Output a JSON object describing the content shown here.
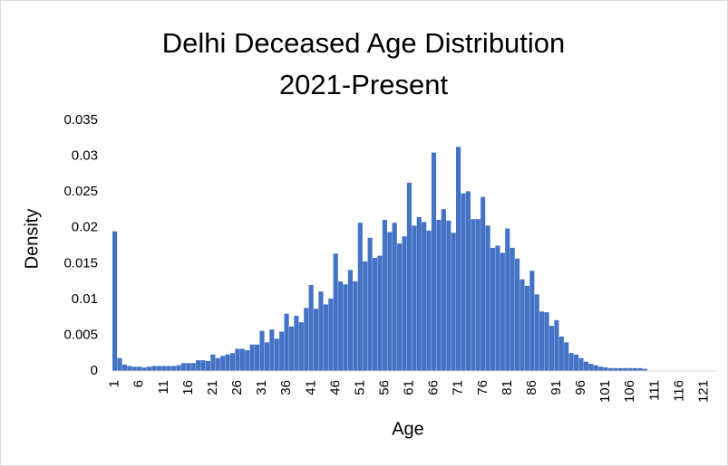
{
  "chart_data": {
    "type": "bar",
    "title": [
      "Delhi Deceased Age Distribution",
      "2021-Present"
    ],
    "x_label": "Age",
    "y_label": "Density",
    "color": "#4472c4",
    "grid": false,
    "ylim": [
      0,
      0.035
    ],
    "yticks": [
      0,
      0.005,
      0.01,
      0.015,
      0.02,
      0.025,
      0.03,
      0.035
    ],
    "categories": [
      1,
      null,
      null,
      null,
      null,
      6,
      null,
      null,
      null,
      null,
      11,
      null,
      null,
      null,
      null,
      16,
      null,
      null,
      null,
      null,
      21,
      null,
      null,
      null,
      null,
      26,
      null,
      null,
      null,
      null,
      31,
      null,
      null,
      null,
      null,
      36,
      null,
      null,
      null,
      null,
      41,
      null,
      null,
      null,
      null,
      46,
      null,
      null,
      null,
      null,
      51,
      null,
      null,
      null,
      null,
      56,
      null,
      null,
      null,
      null,
      61,
      null,
      null,
      null,
      null,
      66,
      null,
      null,
      null,
      null,
      71,
      null,
      null,
      null,
      null,
      76,
      null,
      null,
      null,
      null,
      81,
      null,
      null,
      null,
      null,
      86,
      null,
      null,
      null,
      null,
      91,
      null,
      null,
      null,
      null,
      96,
      null,
      null,
      null,
      null,
      101,
      null,
      null,
      null,
      null,
      106,
      null,
      null,
      null,
      null,
      111,
      null,
      null,
      null,
      null,
      116,
      null,
      null,
      null,
      null,
      121,
      null,
      null
    ],
    "values": [
      0.0195,
      0.0018,
      0.0009,
      0.0007,
      0.0006,
      0.0006,
      0.0005,
      0.0006,
      0.0007,
      0.0007,
      0.0007,
      0.0007,
      0.0007,
      0.0008,
      0.0011,
      0.0011,
      0.0011,
      0.0015,
      0.0015,
      0.0014,
      0.0023,
      0.0018,
      0.0021,
      0.0023,
      0.0025,
      0.0031,
      0.0031,
      0.0029,
      0.0037,
      0.0037,
      0.0056,
      0.004,
      0.0058,
      0.0045,
      0.0055,
      0.008,
      0.0062,
      0.0077,
      0.0068,
      0.0088,
      0.012,
      0.0087,
      0.0111,
      0.0093,
      0.0101,
      0.0164,
      0.0125,
      0.0121,
      0.0141,
      0.0125,
      0.0207,
      0.0153,
      0.0186,
      0.0158,
      0.0161,
      0.0211,
      0.0194,
      0.0207,
      0.0178,
      0.0188,
      0.0263,
      0.0203,
      0.0215,
      0.0208,
      0.0196,
      0.0305,
      0.0211,
      0.0226,
      0.021,
      0.0193,
      0.0313,
      0.0248,
      0.0251,
      0.0212,
      0.0212,
      0.0243,
      0.0203,
      0.0172,
      0.0175,
      0.0165,
      0.0199,
      0.0172,
      0.0157,
      0.0128,
      0.0119,
      0.014,
      0.0107,
      0.0083,
      0.0082,
      0.0063,
      0.0071,
      0.0048,
      0.004,
      0.0025,
      0.0023,
      0.0018,
      0.0013,
      0.001,
      0.0008,
      0.0006,
      0.0005,
      0.0004,
      0.0004,
      0.0004,
      0.0004,
      0.0004,
      0.0004,
      0.0004,
      0.0003,
      0,
      0,
      0,
      0,
      0,
      0,
      0,
      0,
      0,
      0,
      0,
      0,
      0,
      0
    ]
  }
}
